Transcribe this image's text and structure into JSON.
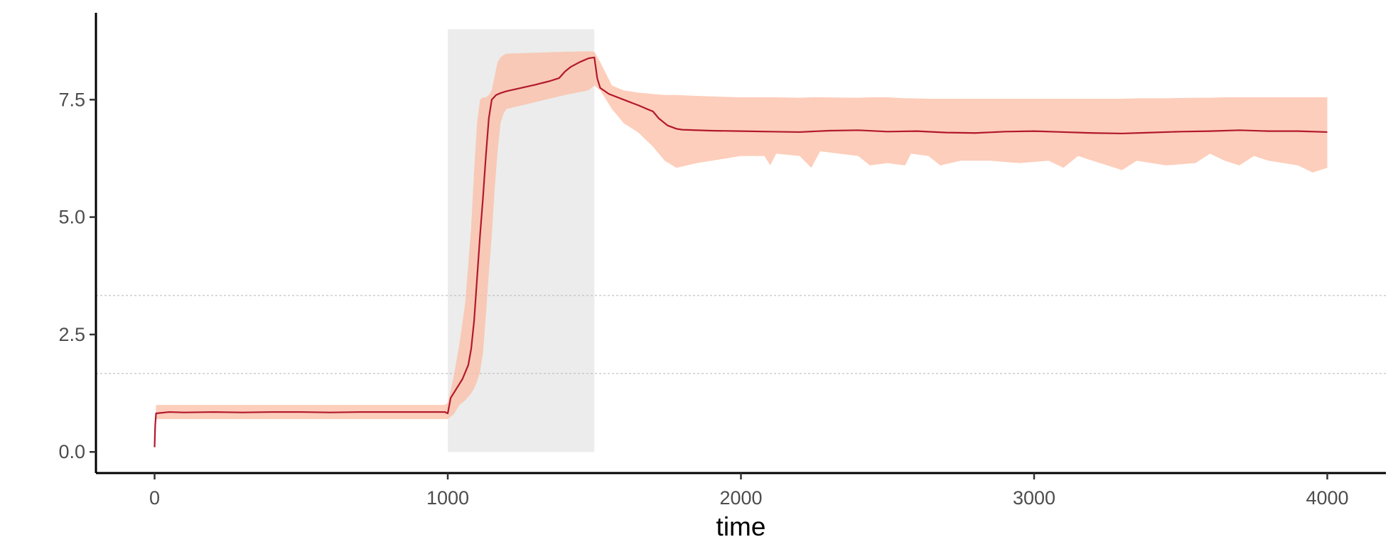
{
  "chart_data": {
    "type": "line",
    "title": "",
    "xlabel": "time",
    "ylabel": "",
    "xlim": [
      -200,
      4200
    ],
    "ylim": [
      -0.45,
      9.35
    ],
    "x_ticks": [
      0,
      1000,
      2000,
      3000,
      4000
    ],
    "x_tick_labels": [
      "0",
      "1000",
      "2000",
      "3000",
      "4000"
    ],
    "y_ticks": [
      0.0,
      2.5,
      5.0,
      7.5
    ],
    "y_tick_labels": [
      "0.0",
      "2.5",
      "5.0",
      "7.5"
    ],
    "grid": false,
    "legend": "none",
    "shaded_region": {
      "x_start": 1000,
      "x_end": 1500,
      "y_bottom": 0,
      "y_top": 9.0,
      "color": "#ececec"
    },
    "reference_lines": [
      3.33,
      1.67
    ],
    "colors": {
      "line": "#b2182b",
      "band": "#fcbba1"
    },
    "series": [
      {
        "points": [
          [
            0,
            0.1
          ],
          [
            2,
            0.55
          ],
          [
            5,
            0.82
          ],
          [
            50,
            0.85
          ],
          [
            100,
            0.84
          ],
          [
            200,
            0.85
          ],
          [
            300,
            0.84
          ],
          [
            400,
            0.85
          ],
          [
            500,
            0.85
          ],
          [
            600,
            0.84
          ],
          [
            700,
            0.85
          ],
          [
            800,
            0.85
          ],
          [
            900,
            0.85
          ],
          [
            990,
            0.85
          ],
          [
            1000,
            0.82
          ],
          [
            1010,
            1.15
          ],
          [
            1030,
            1.35
          ],
          [
            1050,
            1.55
          ],
          [
            1070,
            1.85
          ],
          [
            1080,
            2.2
          ],
          [
            1090,
            2.8
          ],
          [
            1100,
            3.7
          ],
          [
            1110,
            4.6
          ],
          [
            1120,
            5.4
          ],
          [
            1130,
            6.3
          ],
          [
            1140,
            7.1
          ],
          [
            1150,
            7.5
          ],
          [
            1165,
            7.6
          ],
          [
            1180,
            7.64
          ],
          [
            1200,
            7.68
          ],
          [
            1250,
            7.75
          ],
          [
            1300,
            7.82
          ],
          [
            1350,
            7.9
          ],
          [
            1380,
            7.96
          ],
          [
            1400,
            8.1
          ],
          [
            1420,
            8.2
          ],
          [
            1450,
            8.3
          ],
          [
            1480,
            8.38
          ],
          [
            1500,
            8.4
          ],
          [
            1510,
            7.95
          ],
          [
            1520,
            7.75
          ],
          [
            1550,
            7.62
          ],
          [
            1600,
            7.5
          ],
          [
            1650,
            7.38
          ],
          [
            1680,
            7.3
          ],
          [
            1700,
            7.25
          ],
          [
            1720,
            7.1
          ],
          [
            1750,
            6.95
          ],
          [
            1780,
            6.88
          ],
          [
            1800,
            6.86
          ],
          [
            1900,
            6.84
          ],
          [
            2000,
            6.83
          ],
          [
            2100,
            6.82
          ],
          [
            2200,
            6.81
          ],
          [
            2300,
            6.84
          ],
          [
            2400,
            6.85
          ],
          [
            2500,
            6.82
          ],
          [
            2600,
            6.83
          ],
          [
            2700,
            6.8
          ],
          [
            2800,
            6.79
          ],
          [
            2900,
            6.82
          ],
          [
            3000,
            6.83
          ],
          [
            3100,
            6.81
          ],
          [
            3200,
            6.79
          ],
          [
            3300,
            6.78
          ],
          [
            3400,
            6.8
          ],
          [
            3500,
            6.82
          ],
          [
            3600,
            6.83
          ],
          [
            3700,
            6.85
          ],
          [
            3800,
            6.83
          ],
          [
            3900,
            6.83
          ],
          [
            4000,
            6.81
          ]
        ],
        "band": [
          [
            0,
            0.1,
            0.1
          ],
          [
            5,
            0.7,
            1.0
          ],
          [
            50,
            0.7,
            1.0
          ],
          [
            200,
            0.7,
            1.0
          ],
          [
            400,
            0.7,
            1.0
          ],
          [
            600,
            0.7,
            1.0
          ],
          [
            800,
            0.7,
            1.0
          ],
          [
            990,
            0.7,
            1.0
          ],
          [
            1000,
            0.7,
            1.05
          ],
          [
            1020,
            0.8,
            1.6
          ],
          [
            1040,
            1.0,
            2.3
          ],
          [
            1060,
            1.1,
            3.2
          ],
          [
            1080,
            1.25,
            4.8
          ],
          [
            1090,
            1.35,
            6.0
          ],
          [
            1100,
            1.5,
            7.0
          ],
          [
            1110,
            1.7,
            7.5
          ],
          [
            1120,
            2.1,
            7.55
          ],
          [
            1130,
            2.9,
            7.55
          ],
          [
            1140,
            3.8,
            7.6
          ],
          [
            1150,
            4.6,
            7.7
          ],
          [
            1160,
            5.6,
            8.0
          ],
          [
            1170,
            6.4,
            8.3
          ],
          [
            1180,
            7.0,
            8.4
          ],
          [
            1190,
            7.2,
            8.45
          ],
          [
            1200,
            7.3,
            8.48
          ],
          [
            1300,
            7.45,
            8.5
          ],
          [
            1400,
            7.6,
            8.52
          ],
          [
            1480,
            7.7,
            8.53
          ],
          [
            1500,
            7.8,
            8.52
          ],
          [
            1520,
            7.7,
            8.3
          ],
          [
            1560,
            7.3,
            7.8
          ],
          [
            1600,
            7.0,
            7.7
          ],
          [
            1650,
            6.8,
            7.65
          ],
          [
            1700,
            6.5,
            7.62
          ],
          [
            1740,
            6.2,
            7.6
          ],
          [
            1780,
            6.05,
            7.6
          ],
          [
            1850,
            6.15,
            7.58
          ],
          [
            1950,
            6.25,
            7.56
          ],
          [
            2000,
            6.3,
            7.55
          ],
          [
            2080,
            6.3,
            7.55
          ],
          [
            2100,
            6.1,
            7.55
          ],
          [
            2120,
            6.35,
            7.55
          ],
          [
            2200,
            6.3,
            7.54
          ],
          [
            2240,
            6.05,
            7.55
          ],
          [
            2270,
            6.4,
            7.55
          ],
          [
            2400,
            6.3,
            7.54
          ],
          [
            2440,
            6.1,
            7.55
          ],
          [
            2500,
            6.15,
            7.55
          ],
          [
            2560,
            6.1,
            7.53
          ],
          [
            2580,
            6.35,
            7.53
          ],
          [
            2640,
            6.3,
            7.52
          ],
          [
            2680,
            6.1,
            7.52
          ],
          [
            2750,
            6.2,
            7.52
          ],
          [
            2850,
            6.2,
            7.52
          ],
          [
            2950,
            6.15,
            7.52
          ],
          [
            3050,
            6.2,
            7.52
          ],
          [
            3100,
            6.05,
            7.52
          ],
          [
            3150,
            6.3,
            7.52
          ],
          [
            3250,
            6.1,
            7.52
          ],
          [
            3300,
            6.0,
            7.52
          ],
          [
            3350,
            6.2,
            7.53
          ],
          [
            3450,
            6.1,
            7.53
          ],
          [
            3550,
            6.15,
            7.54
          ],
          [
            3600,
            6.35,
            7.54
          ],
          [
            3650,
            6.2,
            7.55
          ],
          [
            3700,
            6.1,
            7.55
          ],
          [
            3750,
            6.3,
            7.55
          ],
          [
            3800,
            6.2,
            7.55
          ],
          [
            3900,
            6.1,
            7.55
          ],
          [
            3950,
            5.95,
            7.55
          ],
          [
            4000,
            6.05,
            7.55
          ]
        ]
      }
    ]
  }
}
